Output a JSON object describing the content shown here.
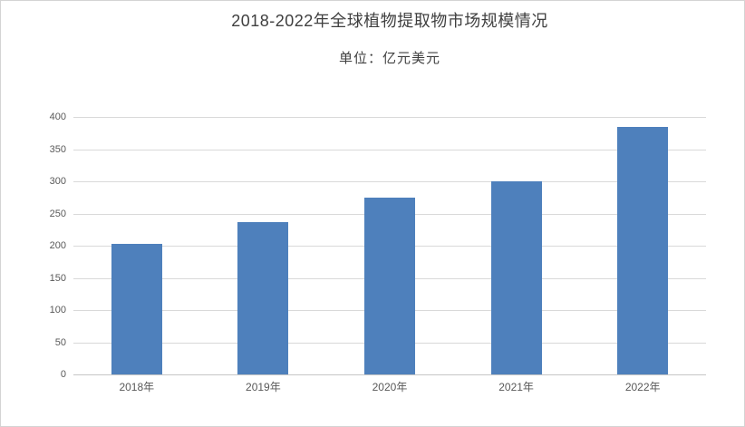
{
  "page": {
    "background": "#ffffff",
    "border_color": "#d4d4d4"
  },
  "chart_data": {
    "type": "bar",
    "title": "2018-2022年全球植物提取物市场规模情况",
    "subtitle": "单位：亿元美元",
    "categories": [
      "2018年",
      "2019年",
      "2020年",
      "2021年",
      "2022年"
    ],
    "values": [
      203,
      237,
      275,
      300,
      385
    ],
    "xlabel": "",
    "ylabel": "",
    "ylim": [
      0,
      400
    ],
    "yticks": [
      0,
      50,
      100,
      150,
      200,
      250,
      300,
      350,
      400
    ],
    "grid": true,
    "legend": "none",
    "bar_color": "#4e80bc",
    "gridline_color": "#d9d9d9",
    "axis_line_color": "#c6c6c6",
    "tick_label_color": "#595959",
    "title_color": "#3f3f3f"
  }
}
